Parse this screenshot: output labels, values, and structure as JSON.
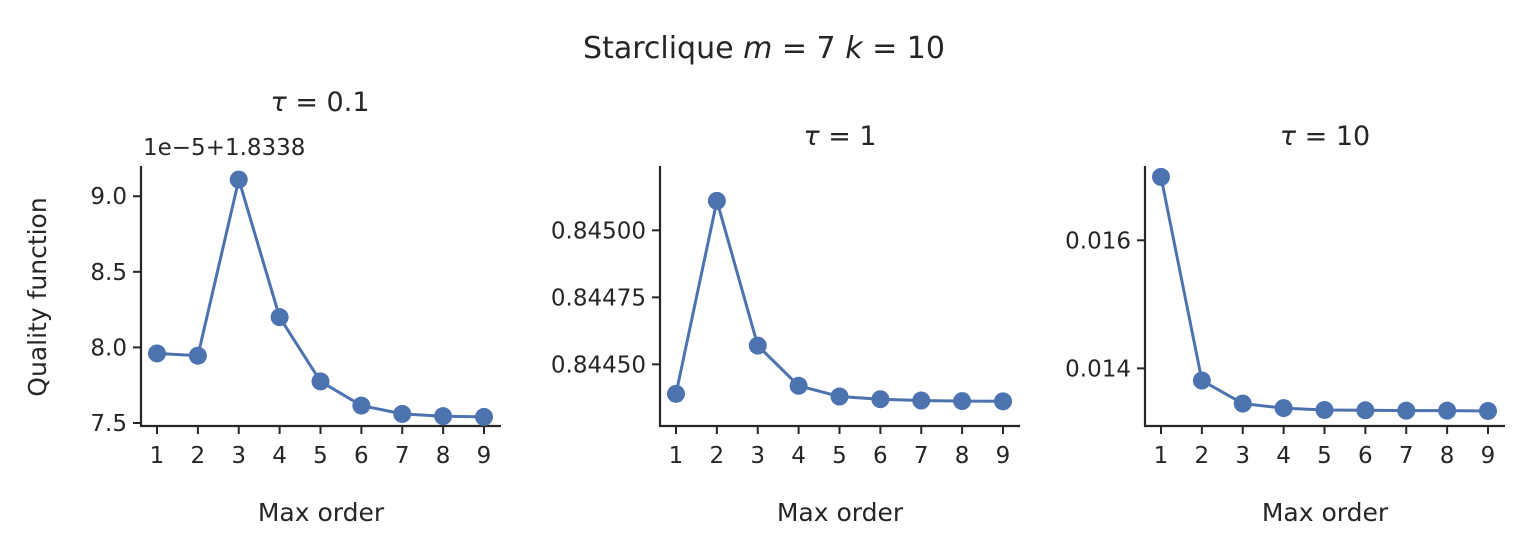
{
  "suptitle": {
    "prefix": "Starclique ",
    "m_sym": "m",
    "m_val": " = 7 ",
    "k_sym": "k",
    "k_val": " = 10"
  },
  "series_color": "#4c72b0",
  "chart_data": [
    {
      "type": "line",
      "title_sym": "τ",
      "title_val": " = 0.1",
      "xlabel": "Max order",
      "ylabel": "Quality function",
      "offset_label": "1e−5+1.8338",
      "x": [
        1,
        2,
        3,
        4,
        5,
        6,
        7,
        8,
        9
      ],
      "y": [
        7.96,
        7.945,
        9.11,
        8.2,
        7.775,
        7.615,
        7.56,
        7.545,
        7.54
      ],
      "ylim": [
        7.48,
        9.2
      ],
      "yticks": [
        7.5,
        8.0,
        8.5,
        9.0
      ],
      "yticklabels": [
        "7.5",
        "8.0",
        "8.5",
        "9.0"
      ],
      "xticklabels": [
        "1",
        "2",
        "3",
        "4",
        "5",
        "6",
        "7",
        "8",
        "9"
      ],
      "grid": false
    },
    {
      "type": "line",
      "title_sym": "τ",
      "title_val": " = 1",
      "xlabel": "Max order",
      "ylabel": "",
      "offset_label": "",
      "x": [
        1,
        2,
        3,
        4,
        5,
        6,
        7,
        8,
        9
      ],
      "y": [
        0.84439,
        0.84511,
        0.84457,
        0.84442,
        0.84438,
        0.84437,
        0.844365,
        0.844363,
        0.844362
      ],
      "ylim": [
        0.84427,
        0.84524
      ],
      "yticks": [
        0.8445,
        0.84475,
        0.845
      ],
      "yticklabels": [
        "0.84450",
        "0.84475",
        "0.84500"
      ],
      "xticklabels": [
        "1",
        "2",
        "3",
        "4",
        "5",
        "6",
        "7",
        "8",
        "9"
      ],
      "grid": false
    },
    {
      "type": "line",
      "title_sym": "τ",
      "title_val": " = 10",
      "xlabel": "Max order",
      "ylabel": "",
      "offset_label": "",
      "x": [
        1,
        2,
        3,
        4,
        5,
        6,
        7,
        8,
        9
      ],
      "y": [
        0.01699,
        0.01381,
        0.01345,
        0.01338,
        0.01335,
        0.013345,
        0.01334,
        0.01334,
        0.013335
      ],
      "ylim": [
        0.0131,
        0.01716
      ],
      "yticks": [
        0.014,
        0.016
      ],
      "yticklabels": [
        "0.014",
        "0.016"
      ],
      "xticklabels": [
        "1",
        "2",
        "3",
        "4",
        "5",
        "6",
        "7",
        "8",
        "9"
      ],
      "grid": false
    }
  ]
}
